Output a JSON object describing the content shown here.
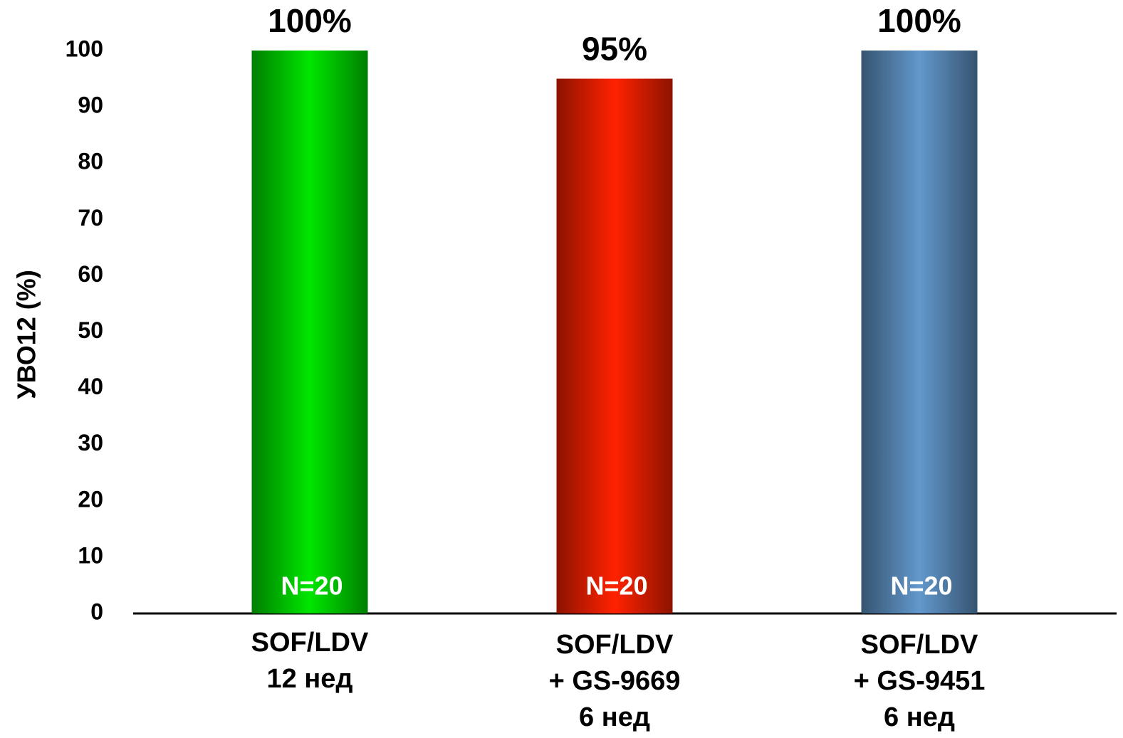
{
  "chart_data": {
    "type": "bar",
    "y_label": "УВО12 (%)",
    "categories": [
      "SOF/LDV\n12 нед",
      "SOF/LDV\n+ GS-9669\n6 нед",
      "SOF/LDV\n+ GS-9451\n6 нед"
    ],
    "values": [
      100,
      95,
      100
    ],
    "value_labels": [
      "100%",
      "95%",
      "100%"
    ],
    "bar_notes": [
      "N=20",
      "N=20",
      "N=20"
    ],
    "colors": [
      "#00e600",
      "#ff2200",
      "#6298cc"
    ],
    "ylim": [
      0,
      100
    ],
    "yticks": [
      0,
      10,
      20,
      30,
      40,
      50,
      60,
      70,
      80,
      90,
      100
    ]
  }
}
